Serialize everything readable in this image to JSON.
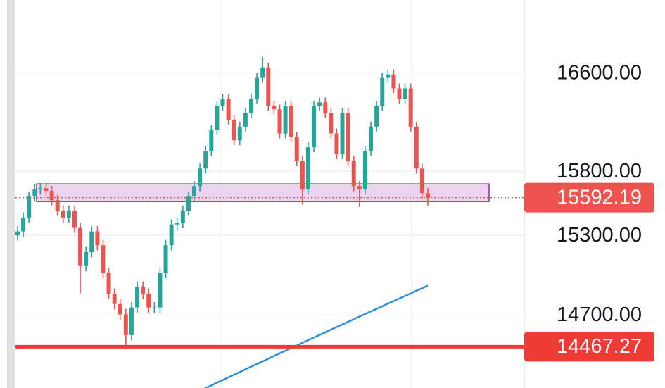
{
  "chart_data": {
    "type": "candlestick",
    "log_scale": true,
    "grid": true,
    "ylim": [
      14170,
      17220
    ],
    "yticks": [
      {
        "value": 16600,
        "label": "16600.00"
      },
      {
        "value": 15800,
        "label": "15800.00"
      },
      {
        "value": 15300,
        "label": "15300.00"
      },
      {
        "value": 14700,
        "label": "14700.00"
      }
    ],
    "up_color": "#26a69a",
    "down_color": "#ef5350",
    "open": [
      15300,
      15330,
      15437,
      15601,
      15656,
      15667,
      15645,
      15573,
      15491,
      15437,
      15491,
      15357,
      15066,
      15171,
      15330,
      15224,
      15014,
      14858,
      14781,
      14704,
      14552,
      14755,
      14910,
      14858,
      14755,
      14755,
      15014,
      15224,
      15384,
      15395,
      15491,
      15601,
      15683,
      15822,
      15964,
      16131,
      16329,
      16386,
      16215,
      16048,
      16159,
      16272,
      16386,
      16559,
      16647,
      16329,
      16300,
      16103,
      16329,
      16076,
      15881,
      15656,
      15992,
      16329,
      16357,
      16272,
      16103,
      15937,
      16272,
      15881,
      15683,
      15656,
      15964,
      16159,
      16329,
      16559,
      16588,
      16472,
      16386,
      16472,
      16159,
      15822,
      15628
    ],
    "high": [
      15370,
      15477,
      15641,
      15696,
      15707,
      15707,
      15685,
      15613,
      15531,
      15531,
      15531,
      15397,
      15211,
      15370,
      15370,
      15264,
      15054,
      14898,
      14821,
      14744,
      14795,
      14950,
      14950,
      14898,
      14795,
      15054,
      15264,
      15424,
      15435,
      15531,
      15641,
      15723,
      15862,
      16004,
      16171,
      16369,
      16426,
      16426,
      16255,
      16199,
      16312,
      16426,
      16599,
      16735,
      16687,
      16369,
      16340,
      16369,
      16369,
      16116,
      15921,
      16032,
      16369,
      16397,
      16397,
      16312,
      16143,
      16312,
      16312,
      15921,
      15723,
      16004,
      16199,
      16369,
      16599,
      16628,
      16628,
      16512,
      16512,
      16512,
      16199,
      15862,
      15668
    ],
    "low": [
      15260,
      15290,
      15397,
      15561,
      15616,
      15605,
      15533,
      15451,
      15397,
      15397,
      15317,
      14860,
      15026,
      15131,
      15184,
      14974,
      14818,
      14741,
      14664,
      14452,
      14512,
      14715,
      14818,
      14715,
      14715,
      14715,
      14974,
      15184,
      15344,
      15355,
      15451,
      15561,
      15643,
      15782,
      15924,
      16091,
      16289,
      16175,
      16008,
      16008,
      16119,
      16232,
      16346,
      16519,
      16289,
      16260,
      16063,
      16063,
      16036,
      15841,
      15540,
      15616,
      15952,
      16289,
      16232,
      16063,
      15897,
      15897,
      15841,
      15643,
      15520,
      15616,
      15924,
      16119,
      16289,
      16519,
      16432,
      16346,
      16346,
      16119,
      15782,
      15588,
      15530
    ],
    "close": [
      15330,
      15437,
      15601,
      15656,
      15667,
      15645,
      15573,
      15491,
      15437,
      15491,
      15357,
      15066,
      15171,
      15330,
      15224,
      15014,
      14858,
      14781,
      14704,
      14552,
      14755,
      14910,
      14858,
      14755,
      14755,
      15014,
      15224,
      15384,
      15395,
      15491,
      15601,
      15683,
      15822,
      15964,
      16131,
      16329,
      16386,
      16215,
      16048,
      16159,
      16272,
      16386,
      16559,
      16647,
      16329,
      16300,
      16103,
      16329,
      16076,
      15881,
      15656,
      15992,
      16329,
      16357,
      16272,
      16103,
      15937,
      16272,
      15881,
      15683,
      15656,
      15964,
      16159,
      16329,
      16559,
      16588,
      16472,
      16386,
      16472,
      16159,
      15822,
      15628,
      15592.19
    ],
    "ma": {
      "color": "#2f8fd8",
      "values": [
        null,
        null,
        null,
        null,
        null,
        null,
        null,
        null,
        null,
        null,
        null,
        null,
        null,
        null,
        null,
        null,
        null,
        null,
        null,
        null,
        null,
        null,
        null,
        null,
        null,
        null,
        null,
        null,
        null,
        null,
        null,
        null,
        14150,
        14169,
        14188,
        14208,
        14227,
        14246,
        14265,
        14284,
        14304,
        14323,
        14342,
        14361,
        14380,
        14400,
        14419,
        14438,
        14457,
        14476,
        14496,
        14515,
        14534,
        14553,
        14572,
        14592,
        14611,
        14630,
        14649,
        14668,
        14688,
        14707,
        14726,
        14745,
        14764,
        14784,
        14803,
        14822,
        14841,
        14860,
        14880,
        14899,
        14918
      ]
    },
    "zone": {
      "top": 15700,
      "bottom": 15562,
      "color": "#e9cdee",
      "border": "#9c27b0"
    },
    "price_line": {
      "value": 15592.19,
      "color": "#ef5350"
    },
    "support_line": {
      "value": 14467.27,
      "color": "#ef3b36"
    }
  }
}
